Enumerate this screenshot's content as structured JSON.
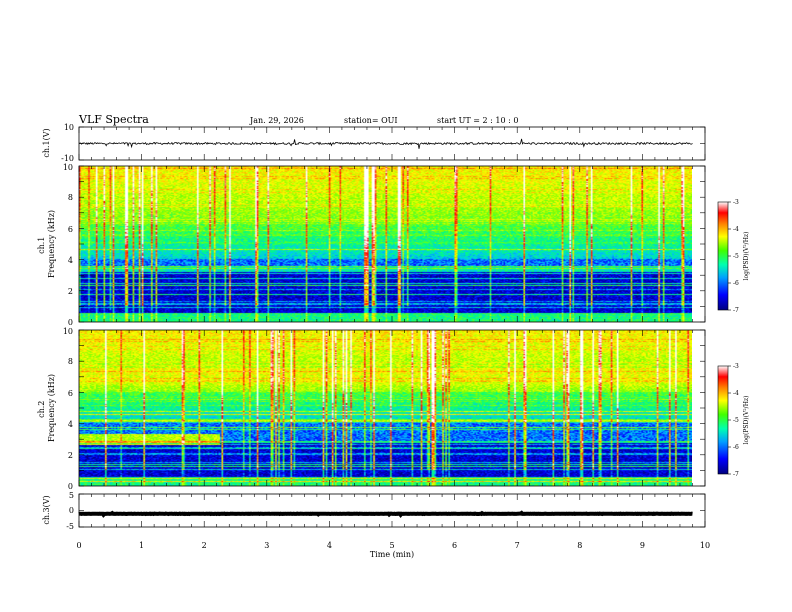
{
  "header": {
    "title": "VLF Spectra",
    "date": "Jan. 29, 2026",
    "station": "station= OUI",
    "start": "start  UT =   2 : 10 : 0"
  },
  "chart_data": [
    {
      "type": "line",
      "panel": "ch1-waveform",
      "ylabel": "ch.1(V)",
      "ylim": [
        -10,
        10
      ],
      "yticks": [
        "10",
        "-10"
      ],
      "xlim": [
        0,
        10
      ],
      "baseline": 0,
      "noise_amplitude": 0.6
    },
    {
      "type": "heatmap",
      "panel": "ch1-spectrogram",
      "ylabel": "ch.1\nFrequency (kHz)",
      "ylim": [
        0,
        10
      ],
      "yticks": [
        "0",
        "2",
        "4",
        "6",
        "8",
        "10"
      ],
      "xlim": [
        0,
        10
      ],
      "colorbar": {
        "label": "log(PSD)(V²/Hz)",
        "range": [
          -7,
          -3
        ],
        "ticks": [
          "-3",
          "-4",
          "-5",
          "-6",
          "-7"
        ]
      },
      "noise_band_top_khz": 3.5,
      "quiet_band_khz": [
        3.5,
        6.5
      ]
    },
    {
      "type": "heatmap",
      "panel": "ch2-spectrogram",
      "ylabel": "ch.2\nFrequency (kHz)",
      "ylim": [
        0,
        10
      ],
      "yticks": [
        "0",
        "2",
        "4",
        "6",
        "8",
        "10"
      ],
      "xlim": [
        0,
        10
      ],
      "colorbar": {
        "label": "log(PSD)(V²/Hz)",
        "range": [
          -7,
          -3
        ],
        "ticks": [
          "-3",
          "-4",
          "-5",
          "-6",
          "-7"
        ]
      },
      "noise_band_top_khz": 2.8,
      "quiet_band_khz": [
        3.0,
        6.0
      ]
    },
    {
      "type": "line",
      "panel": "ch3-waveform",
      "ylabel": "ch.3(V)",
      "ylim": [
        -5,
        5
      ],
      "yticks": [
        "5",
        "0",
        "-5"
      ],
      "xlim": [
        0,
        10
      ],
      "baseline": -1.0,
      "noise_amplitude": 0.05
    }
  ],
  "xaxis": {
    "label": "Time (min)",
    "ticks": [
      "0",
      "1",
      "2",
      "3",
      "4",
      "5",
      "6",
      "7",
      "8",
      "9",
      "10"
    ],
    "data_end_min": 9.8
  },
  "colors": {
    "line": "#000000",
    "cmap": [
      "#000080",
      "#0000ff",
      "#00c0ff",
      "#00ff80",
      "#80ff00",
      "#ffff00",
      "#ff8000",
      "#ff0000",
      "#ffffff"
    ]
  }
}
